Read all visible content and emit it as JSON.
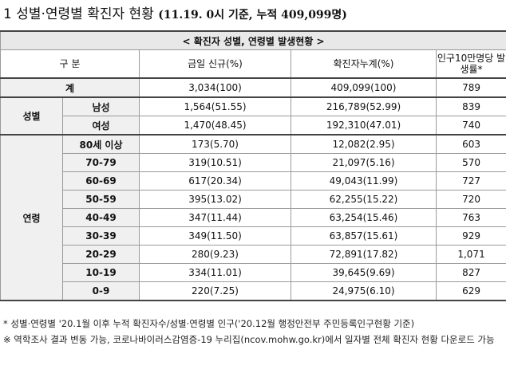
{
  "heading": {
    "prefix": "1  성별·연령별 확진자 현황",
    "detail": "(11.19. 0시 기준, 누적 409,099명)"
  },
  "table": {
    "caption": "< 확진자 성별, 연령별 발생현황 >",
    "headers": [
      "구 분",
      "금일 신규(%)",
      "확진자누계(%)",
      "인구10만명당 발생률*"
    ],
    "total": {
      "label": "계",
      "new": "3,034(100)",
      "cum": "409,099(100)",
      "rate": "789"
    },
    "sex_label": "성별",
    "sex_rows": [
      {
        "label": "남성",
        "new": "1,564(51.55)",
        "cum": "216,789(52.99)",
        "rate": "839"
      },
      {
        "label": "여성",
        "new": "1,470(48.45)",
        "cum": "192,310(47.01)",
        "rate": "740"
      }
    ],
    "age_label": "연령",
    "age_rows": [
      {
        "label": "80세 이상",
        "new": "173(5.70)",
        "cum": "12,082(2.95)",
        "rate": "603"
      },
      {
        "label": "70-79",
        "new": "319(10.51)",
        "cum": "21,097(5.16)",
        "rate": "570"
      },
      {
        "label": "60-69",
        "new": "617(20.34)",
        "cum": "49,043(11.99)",
        "rate": "727"
      },
      {
        "label": "50-59",
        "new": "395(13.02)",
        "cum": "62,255(15.22)",
        "rate": "720"
      },
      {
        "label": "40-49",
        "new": "347(11.44)",
        "cum": "63,254(15.46)",
        "rate": "763"
      },
      {
        "label": "30-39",
        "new": "349(11.50)",
        "cum": "63,857(15.61)",
        "rate": "929"
      },
      {
        "label": "20-29",
        "new": "280(9.23)",
        "cum": "72,891(17.82)",
        "rate": "1,071"
      },
      {
        "label": "10-19",
        "new": "334(11.01)",
        "cum": "39,645(9.69)",
        "rate": "827"
      },
      {
        "label": "0-9",
        "new": "220(7.25)",
        "cum": "24,975(6.10)",
        "rate": "629"
      }
    ]
  },
  "notes": [
    "* 성별·연령별 '20.1월 이후 누적 확진자수/성별·연령별 인구('20.12월 행정안전부 주민등록인구현황 기준)",
    "※ 역학조사 결과 변동 가능, 코로나바이러스감염증-19 누리집(ncov.mohw.go.kr)에서 일자별 전체 확진자 현황 다운로드 가능"
  ]
}
